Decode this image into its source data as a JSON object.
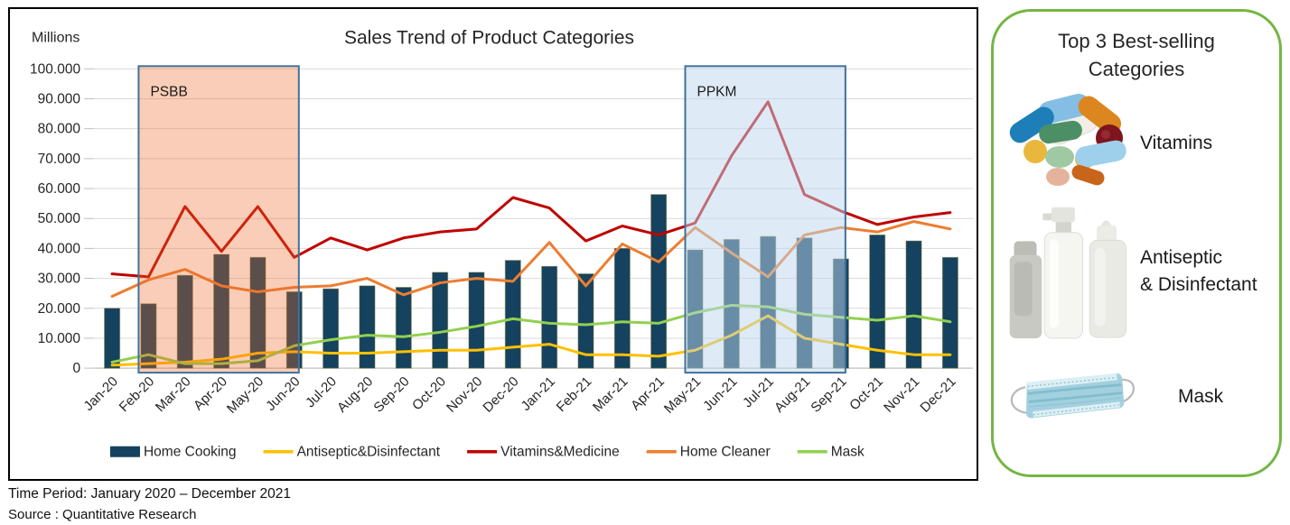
{
  "chart_data": {
    "type": "combo_bar_line",
    "title": "Sales Trend of Product Categories",
    "axis_unit_label": "Millions",
    "ylim": [
      0,
      100000
    ],
    "ytick_labels": [
      "0",
      "10.000",
      "20.000",
      "30.000",
      "40.000",
      "50.000",
      "60.000",
      "70.000",
      "80.000",
      "90.000",
      "100.000"
    ],
    "grid_color": "#D9D9D9",
    "legend_position": "bottom",
    "categories": [
      "Jan-20",
      "Feb-20",
      "Mar-20",
      "Apr-20",
      "May-20",
      "Jun-20",
      "Jul-20",
      "Aug-20",
      "Sep-20",
      "Oct-20",
      "Nov-20",
      "Dec-20",
      "Jan-21",
      "Feb-21",
      "Mar-21",
      "Apr-21",
      "May-21",
      "Jun-21",
      "Jul-21",
      "Aug-21",
      "Sep-21",
      "Oct-21",
      "Nov-21",
      "Dec-21"
    ],
    "bar_series": {
      "name": "Home Cooking",
      "color": "#14425F",
      "border": "#6E6A28",
      "values": [
        20000,
        21500,
        31000,
        38000,
        37000,
        25500,
        26500,
        27500,
        27000,
        32000,
        32000,
        36000,
        34000,
        31500,
        40000,
        58000,
        39500,
        43000,
        44000,
        43500,
        36500,
        44500,
        42500,
        37000
      ]
    },
    "line_series": [
      {
        "name": "Antiseptic&Disinfectant",
        "color": "#FFC000",
        "values": [
          1000,
          1500,
          2000,
          3000,
          5000,
          5500,
          5000,
          5000,
          5500,
          6000,
          6000,
          7000,
          8000,
          4500,
          4500,
          4000,
          6000,
          11000,
          17500,
          10000,
          8000,
          6000,
          4500,
          4500
        ]
      },
      {
        "name": "Vitamins&Medicine",
        "color": "#C00000",
        "values": [
          31500,
          30500,
          54000,
          39000,
          54000,
          37000,
          43500,
          39500,
          43500,
          45500,
          46500,
          57000,
          53500,
          42500,
          47500,
          44500,
          48500,
          71000,
          89000,
          58000,
          52500,
          48000,
          50500,
          52000
        ]
      },
      {
        "name": "Home Cleaner",
        "color": "#ED7D31",
        "values": [
          24000,
          29500,
          33000,
          27500,
          25500,
          27000,
          27500,
          30000,
          24500,
          28500,
          30000,
          29000,
          42000,
          27500,
          41500,
          35500,
          47000,
          38500,
          30500,
          44500,
          47000,
          45500,
          49000,
          46500
        ]
      },
      {
        "name": "Mask",
        "color": "#92D050",
        "values": [
          2000,
          4500,
          1500,
          1500,
          2500,
          7500,
          9500,
          11000,
          10500,
          12000,
          14000,
          16500,
          15000,
          14500,
          15500,
          15000,
          18500,
          21000,
          20500,
          18000,
          17000,
          16000,
          17500,
          15500
        ]
      }
    ],
    "regions": [
      {
        "label": "PSBB",
        "from": "Feb-20",
        "to": "Jun-20",
        "fill": "#ED6825",
        "fill_opacity": 0.33,
        "border": "#41719C"
      },
      {
        "label": "PPKM",
        "from": "May-21",
        "to": "Sep-21",
        "fill": "#BDD7EE",
        "fill_opacity": 0.5,
        "border": "#41719C"
      }
    ]
  },
  "panel": {
    "title_line1": "Top 3 Best-selling",
    "title_line2": "Categories",
    "border_color": "#74B644",
    "items": [
      {
        "icon": "pills-icon",
        "label_lines": [
          "Vitamins"
        ]
      },
      {
        "icon": "spray-bottles-icon",
        "label_lines": [
          "Antiseptic",
          "& Disinfectant"
        ]
      },
      {
        "icon": "face-mask-icon",
        "label_lines": [
          "Mask"
        ]
      }
    ]
  },
  "footer": {
    "time_period": "Time Period: January 2020 – December 2021",
    "source": "Source : Quantitative Research"
  }
}
